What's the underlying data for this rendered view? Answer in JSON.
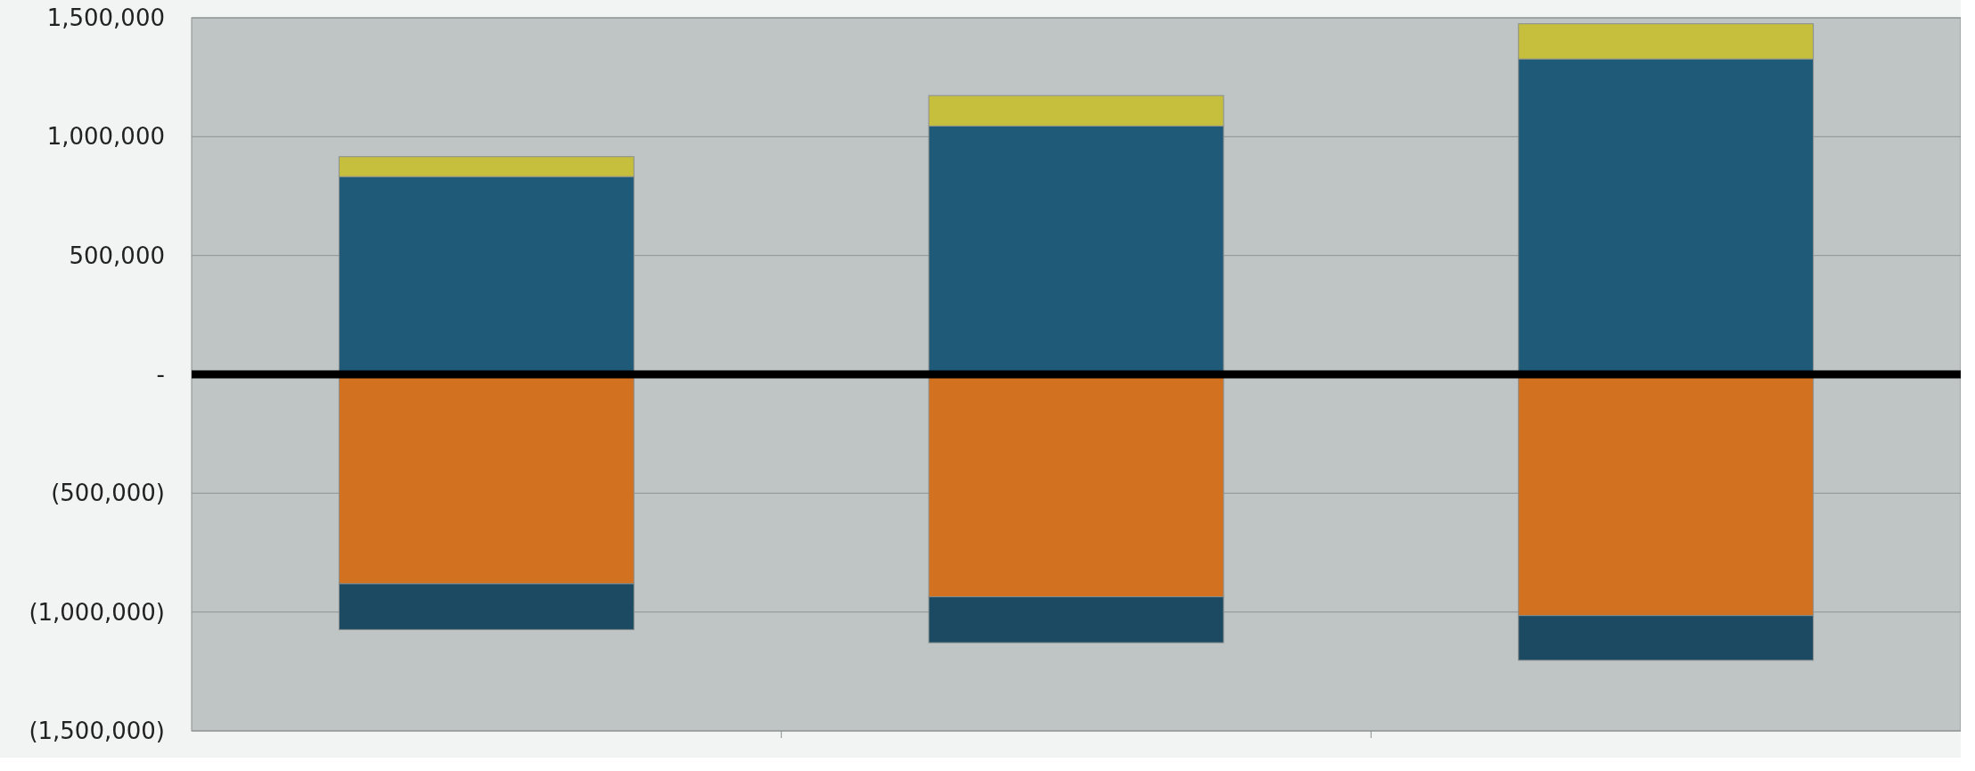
{
  "chart_data": {
    "type": "bar",
    "stacked": true,
    "categories": [
      null,
      null,
      null
    ],
    "series": [
      {
        "color": "#1f5a78",
        "values": [
          832000,
          1045000,
          1327000
        ]
      },
      {
        "color": "#c6bf3e",
        "values": [
          84000,
          128000,
          148000
        ]
      },
      {
        "color": "#d2711f",
        "values": [
          -881000,
          -936000,
          -1015000
        ]
      },
      {
        "color": "#1b4a62",
        "values": [
          -193000,
          -193000,
          -188000
        ]
      }
    ],
    "ylim": [
      -1500000,
      1500000
    ],
    "yticks": [
      {
        "value": -1500000,
        "label": "(1,500,000)"
      },
      {
        "value": -1000000,
        "label": "(1,000,000)"
      },
      {
        "value": -500000,
        "label": "(500,000)"
      },
      {
        "value": 0,
        "label": "-"
      },
      {
        "value": 500000,
        "label": "500,000"
      },
      {
        "value": 1000000,
        "label": "1,000,000"
      },
      {
        "value": 1500000,
        "label": "1,500,000"
      }
    ],
    "grid": "y"
  }
}
